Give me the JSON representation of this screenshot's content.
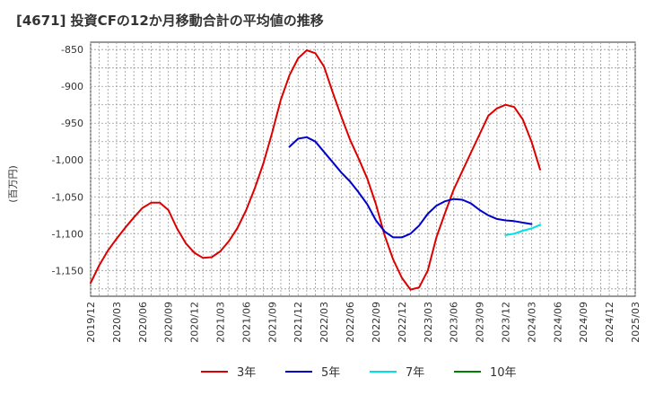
{
  "chart_data": {
    "type": "line",
    "title": "[4671]  投資CFの12か月移動合計の平均値の推移",
    "ylabel": "(百万円)",
    "xlabel": "",
    "ylim": [
      -1185,
      -840
    ],
    "y_ticks": [
      -850,
      -900,
      -950,
      -1000,
      -1050,
      -1100,
      -1150
    ],
    "y_tick_labels": [
      "-850",
      "-900",
      "-950",
      "-1,000",
      "-1,050",
      "-1,100",
      "-1,150"
    ],
    "x_tick_labels": [
      "2019/12",
      "2020/03",
      "2020/06",
      "2020/09",
      "2020/12",
      "2021/03",
      "2021/06",
      "2021/09",
      "2021/12",
      "2022/03",
      "2022/06",
      "2022/09",
      "2022/12",
      "2023/03",
      "2023/06",
      "2023/09",
      "2023/12",
      "2024/03",
      "2024/06",
      "2024/09",
      "2024/12",
      "2025/03"
    ],
    "legend_position": "bottom",
    "grid": true,
    "series": [
      {
        "name": "3年",
        "color": "#dd0000",
        "start": "2019/12",
        "values": [
          -1167,
          -1143,
          -1123,
          -1107,
          -1092,
          -1078,
          -1065,
          -1058,
          -1058,
          -1068,
          -1093,
          -1113,
          -1126,
          -1133,
          -1132,
          -1124,
          -1110,
          -1092,
          -1068,
          -1038,
          -1004,
          -963,
          -918,
          -885,
          -862,
          -851,
          -855,
          -873,
          -908,
          -941,
          -972,
          -998,
          -1025,
          -1060,
          -1102,
          -1135,
          -1160,
          -1176,
          -1173,
          -1150,
          -1105,
          -1072,
          -1040,
          -1015,
          -990,
          -965,
          -940,
          -930,
          -925,
          -928,
          -945,
          -975,
          -1013
        ]
      },
      {
        "name": "5年",
        "color": "#0000cc",
        "start": "2021/11",
        "values": [
          -982,
          -971,
          -969,
          -975,
          -989,
          -1003,
          -1017,
          -1029,
          -1044,
          -1060,
          -1082,
          -1097,
          -1105,
          -1105,
          -1100,
          -1089,
          -1073,
          -1062,
          -1056,
          -1053,
          -1054,
          -1059,
          -1068,
          -1075,
          -1080,
          -1082,
          -1083,
          -1085,
          -1087
        ]
      },
      {
        "name": "7年",
        "color": "#00e0e0",
        "start": "2023/12",
        "values": [
          -1102,
          -1100,
          -1096,
          -1093,
          -1088
        ]
      },
      {
        "name": "10年",
        "color": "#008000",
        "start": "2024/03",
        "values": []
      }
    ]
  }
}
